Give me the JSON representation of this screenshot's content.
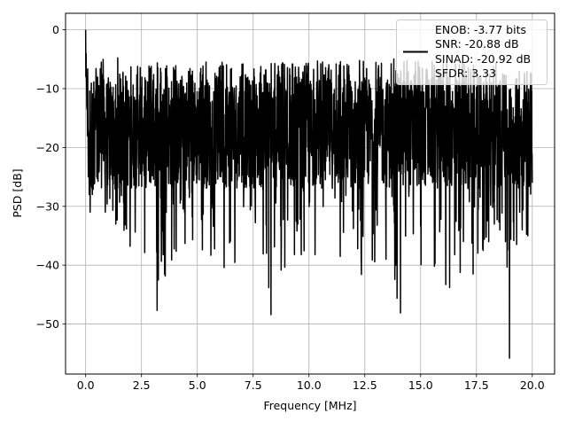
{
  "chart_data": {
    "type": "line",
    "xlabel": "Frequency [MHz]",
    "ylabel": "PSD [dB]",
    "xlim": [
      -0.9,
      21.0
    ],
    "ylim": [
      -58.5,
      2.8
    ],
    "xticks": [
      0.0,
      2.5,
      5.0,
      7.5,
      10.0,
      12.5,
      15.0,
      17.5,
      20.0
    ],
    "xtick_labels": [
      "0.0",
      "2.5",
      "5.0",
      "7.5",
      "10.0",
      "12.5",
      "15.0",
      "17.5",
      "20.0"
    ],
    "yticks": [
      0,
      -10,
      -20,
      -30,
      -40,
      -50
    ],
    "ytick_labels": [
      "0",
      "−10",
      "−20",
      "−30",
      "−40",
      "−50"
    ],
    "grid": true,
    "legend": {
      "placement": "top-right",
      "entries": [
        "ENOB: -3.77 bits",
        "SNR: -20.88 dB",
        "SINAD: -20.92 dB",
        "SFDR: 3.33"
      ]
    },
    "series": [
      {
        "color": "#000000",
        "x": [
          0.0,
          0.02,
          0.05,
          0.08,
          0.12,
          0.16,
          0.2,
          0.3,
          0.4,
          0.5,
          0.88,
          1.35,
          1.99,
          3.2,
          3.85,
          4.45,
          6.2,
          7.95,
          8.3,
          9.35,
          11.4,
          12.35,
          13.45,
          14.1,
          16.3,
          17.35,
          17.8,
          18.05,
          18.3,
          18.55,
          18.8,
          18.98,
          19.3,
          19.55,
          19.8,
          20.0
        ],
        "min": [
          -2,
          -4,
          -13,
          -18,
          -25,
          -28,
          -31,
          -28,
          -26,
          -25,
          -31,
          -33,
          -36.8,
          -47.7,
          -39.1,
          -36.3,
          -40.4,
          -38.1,
          -48.4,
          -38.2,
          -38.5,
          -41.6,
          -39.0,
          -48.1,
          -43.8,
          -41.5,
          -37.5,
          -36.0,
          -33.0,
          -34.0,
          -36.0,
          -55.8,
          -36.5,
          -34.0,
          -35.0,
          -26.0
        ],
        "max": [
          0,
          -2.5,
          -4,
          -5,
          -5.5,
          -6,
          -6,
          -6.5,
          -6.5,
          -6.5,
          -4,
          -4.5,
          -6,
          -5,
          -6,
          -5.5,
          -5,
          -6,
          -5,
          -5.5,
          -5,
          -5,
          -4.5,
          -5,
          -5.5,
          -5.5,
          -6,
          -6.5,
          -5.5,
          -6,
          -6,
          -6.5,
          -6,
          -7,
          -7,
          -7
        ]
      }
    ]
  }
}
